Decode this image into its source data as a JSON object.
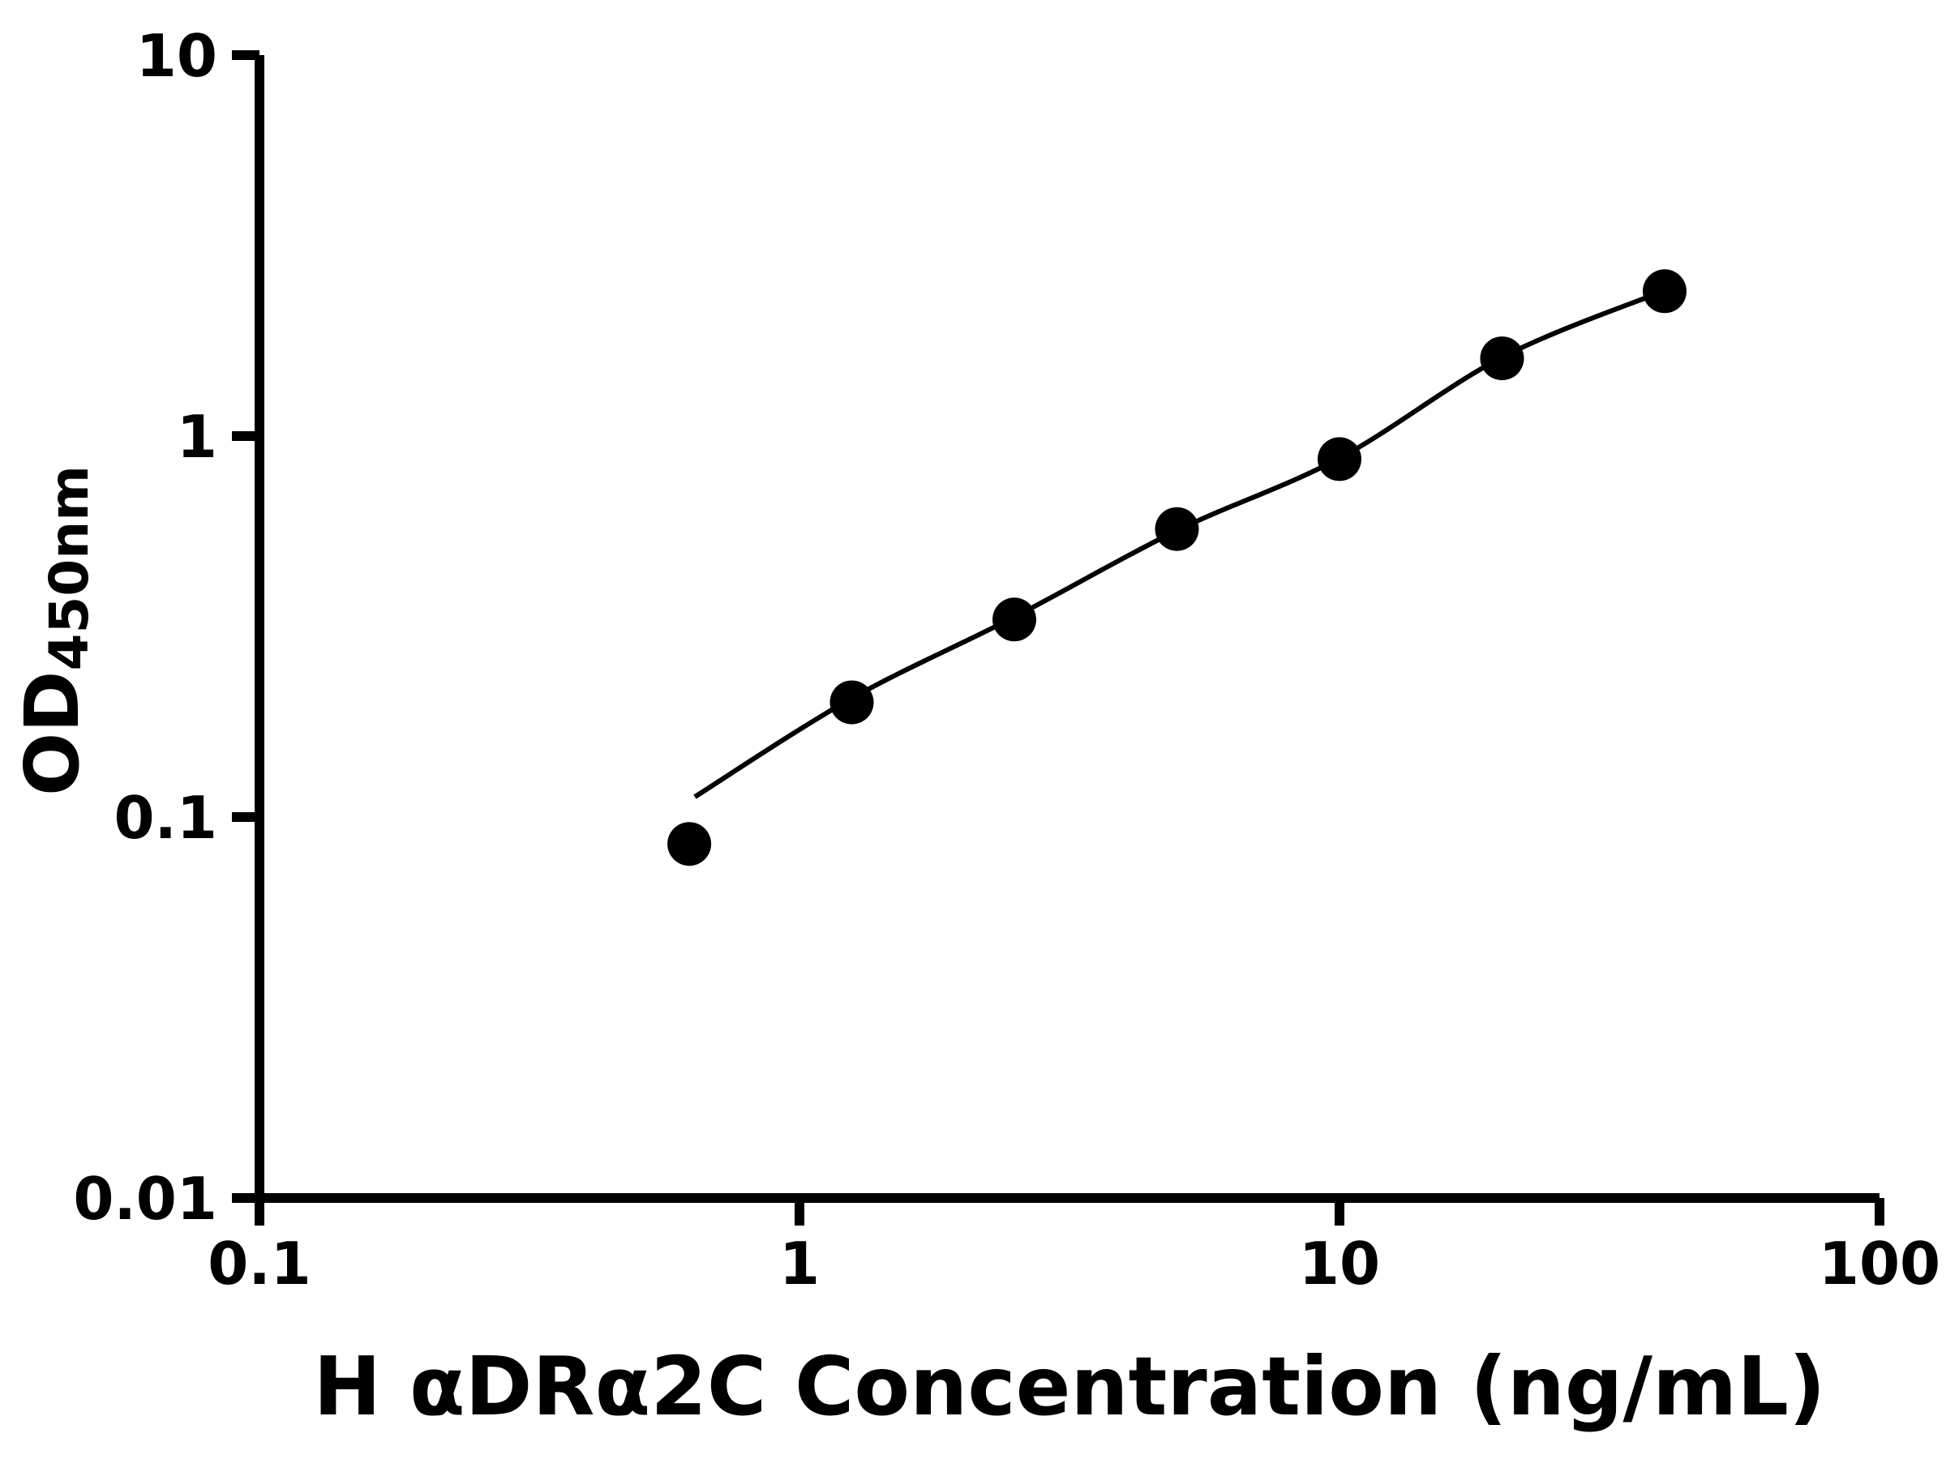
{
  "chart_data": {
    "type": "scatter",
    "title": "",
    "xlabel": "H αDRα2C Concentration (ng/mL)",
    "ylabel_main": "OD",
    "ylabel_sub": "450nm",
    "x_scale": "log",
    "y_scale": "log",
    "xlim": [
      0.1,
      100
    ],
    "ylim": [
      0.01,
      10
    ],
    "x_ticks": [
      0.1,
      1,
      10,
      100
    ],
    "x_tick_labels": [
      "0.1",
      "1",
      "10",
      "100"
    ],
    "y_ticks": [
      0.01,
      0.1,
      1,
      10
    ],
    "y_tick_labels": [
      "0.01",
      "0.1",
      "1",
      "10"
    ],
    "grid": false,
    "legend": "none",
    "series": [
      {
        "name": "standard-curve-points",
        "type": "scatter",
        "marker": "filled-circle",
        "x": [
          0.625,
          1.25,
          2.5,
          5,
          10,
          20,
          40
        ],
        "y": [
          0.085,
          0.2,
          0.33,
          0.57,
          0.87,
          1.6,
          2.4
        ]
      }
    ],
    "fit_line": {
      "name": "fitted-curve",
      "x": [
        0.64,
        1.25,
        2.5,
        5,
        10,
        20,
        40
      ],
      "y": [
        0.113,
        0.205,
        0.335,
        0.565,
        0.875,
        1.61,
        2.41
      ]
    },
    "colors": {
      "marker": "#000000",
      "line": "#000000",
      "axis": "#000000",
      "background": "#ffffff"
    }
  }
}
